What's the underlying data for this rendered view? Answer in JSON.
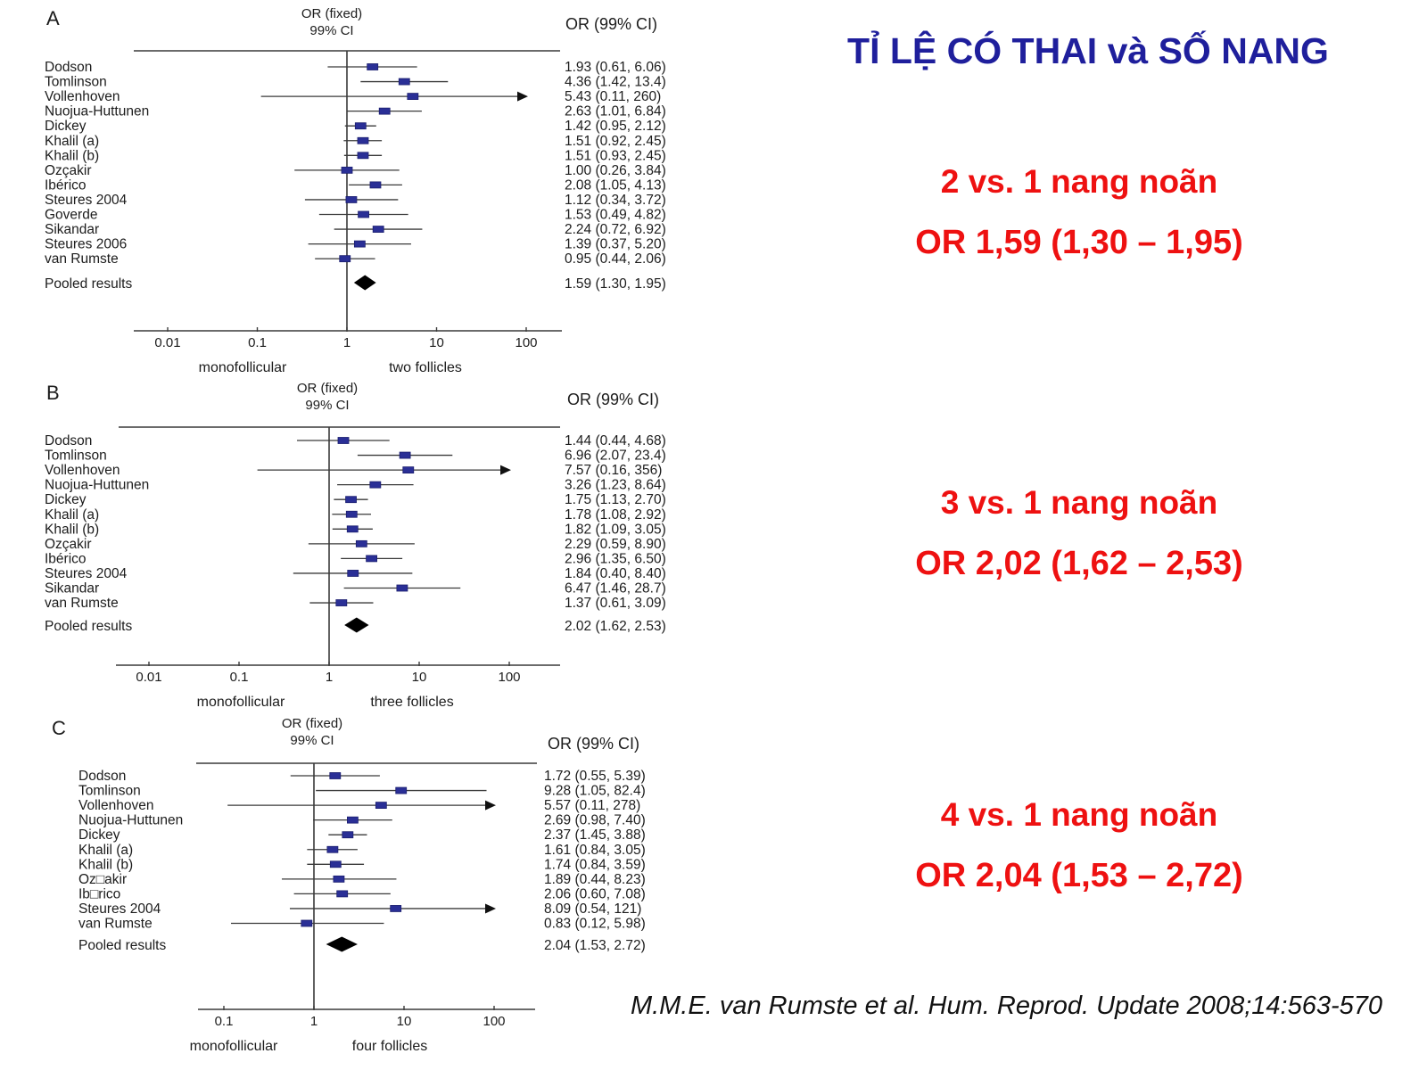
{
  "slide": {
    "title": "TỈ LỆ CÓ THAI và SỐ NANG",
    "citation": "M.M.E. van Rumste et al. Hum. Reprod. Update 2008;14:563-570",
    "colors": {
      "title_blue": "#1f1f9c",
      "accent_red": "#ee1111",
      "marker_blue": "#2a2f96",
      "line_dark": "#3a3a3a",
      "diamond_black": "#000000"
    }
  },
  "annotations": [
    {
      "compare": "2 vs. 1 nang noãn",
      "or_text": "OR 1,59 (1,30 – 1,95)"
    },
    {
      "compare": "3 vs. 1 nang noãn",
      "or_text": "OR 2,02 (1,62 – 2,53)"
    },
    {
      "compare": "4 vs. 1 nang noãn",
      "or_text": "OR 2,04 (1,53 – 2,72)"
    }
  ],
  "chart_data": [
    {
      "type": "forest",
      "panel": "A",
      "header_line1": "OR (fixed)",
      "header_line2": "99% CI",
      "value_col_header": "OR (99% CI)",
      "axis": {
        "scale": "log",
        "ticks": [
          0.01,
          0.1,
          1,
          10,
          100
        ],
        "tick_labels": [
          "0.01",
          "0.1",
          "1",
          "10",
          "100"
        ],
        "left_label": "monofollicular",
        "right_label": "two follicles",
        "xlim": [
          0.01,
          200
        ]
      },
      "studies": [
        {
          "name": "Dodson",
          "or": 1.93,
          "lo": 0.61,
          "hi": 6.06,
          "label": "1.93 (0.61, 6.06)"
        },
        {
          "name": "Tomlinson",
          "or": 4.36,
          "lo": 1.42,
          "hi": 13.4,
          "label": "4.36 (1.42, 13.4)"
        },
        {
          "name": "Vollenhoven",
          "or": 5.43,
          "lo": 0.11,
          "hi": 260,
          "label": "5.43 (0.11, 260)"
        },
        {
          "name": "Nuojua-Huttunen",
          "or": 2.63,
          "lo": 1.01,
          "hi": 6.84,
          "label": "2.63 (1.01, 6.84)"
        },
        {
          "name": "Dickey",
          "or": 1.42,
          "lo": 0.95,
          "hi": 2.12,
          "label": "1.42 (0.95, 2.12)"
        },
        {
          "name": "Khalil (a)",
          "or": 1.51,
          "lo": 0.92,
          "hi": 2.45,
          "label": "1.51 (0.92, 2.45)"
        },
        {
          "name": "Khalil (b)",
          "or": 1.51,
          "lo": 0.93,
          "hi": 2.45,
          "label": "1.51 (0.93, 2.45)"
        },
        {
          "name": "Ozçakir",
          "or": 1.0,
          "lo": 0.26,
          "hi": 3.84,
          "label": "1.00 (0.26, 3.84)"
        },
        {
          "name": "Ibérico",
          "or": 2.08,
          "lo": 1.05,
          "hi": 4.13,
          "label": "2.08 (1.05, 4.13)"
        },
        {
          "name": "Steures 2004",
          "or": 1.12,
          "lo": 0.34,
          "hi": 3.72,
          "label": "1.12 (0.34, 3.72)"
        },
        {
          "name": "Goverde",
          "or": 1.53,
          "lo": 0.49,
          "hi": 4.82,
          "label": "1.53 (0.49, 4.82)"
        },
        {
          "name": "Sikandar",
          "or": 2.24,
          "lo": 0.72,
          "hi": 6.92,
          "label": "2.24 (0.72, 6.92)"
        },
        {
          "name": "Steures 2006",
          "or": 1.39,
          "lo": 0.37,
          "hi": 5.2,
          "label": "1.39 (0.37, 5.20)"
        },
        {
          "name": "van Rumste",
          "or": 0.95,
          "lo": 0.44,
          "hi": 2.06,
          "label": "0.95 (0.44, 2.06)"
        }
      ],
      "pooled": {
        "name": "Pooled results",
        "or": 1.59,
        "lo": 1.3,
        "hi": 1.95,
        "label": "1.59 (1.30, 1.95)"
      }
    },
    {
      "type": "forest",
      "panel": "B",
      "header_line1": "OR (fixed)",
      "header_line2": "99% CI",
      "value_col_header": "OR (99% CI)",
      "axis": {
        "scale": "log",
        "ticks": [
          0.01,
          0.1,
          1,
          10,
          100
        ],
        "tick_labels": [
          "0.01",
          "0.1",
          "1",
          "10",
          "100"
        ],
        "left_label": "monofollicular",
        "right_label": "three follicles",
        "xlim": [
          0.01,
          200
        ]
      },
      "studies": [
        {
          "name": "Dodson",
          "or": 1.44,
          "lo": 0.44,
          "hi": 4.68,
          "label": "1.44 (0.44, 4.68)"
        },
        {
          "name": "Tomlinson",
          "or": 6.96,
          "lo": 2.07,
          "hi": 23.4,
          "label": "6.96 (2.07, 23.4)"
        },
        {
          "name": "Vollenhoven",
          "or": 7.57,
          "lo": 0.16,
          "hi": 356,
          "label": "7.57 (0.16, 356)"
        },
        {
          "name": "Nuojua-Huttunen",
          "or": 3.26,
          "lo": 1.23,
          "hi": 8.64,
          "label": "3.26 (1.23, 8.64)"
        },
        {
          "name": "Dickey",
          "or": 1.75,
          "lo": 1.13,
          "hi": 2.7,
          "label": "1.75 (1.13, 2.70)"
        },
        {
          "name": "Khalil (a)",
          "or": 1.78,
          "lo": 1.08,
          "hi": 2.92,
          "label": "1.78 (1.08, 2.92)"
        },
        {
          "name": "Khalil (b)",
          "or": 1.82,
          "lo": 1.09,
          "hi": 3.05,
          "label": "1.82 (1.09, 3.05)"
        },
        {
          "name": "Ozçakir",
          "or": 2.29,
          "lo": 0.59,
          "hi": 8.9,
          "label": "2.29 (0.59, 8.90)"
        },
        {
          "name": "Ibérico",
          "or": 2.96,
          "lo": 1.35,
          "hi": 6.5,
          "label": "2.96 (1.35, 6.50)"
        },
        {
          "name": "Steures 2004",
          "or": 1.84,
          "lo": 0.4,
          "hi": 8.4,
          "label": "1.84 (0.40, 8.40)"
        },
        {
          "name": "Sikandar",
          "or": 6.47,
          "lo": 1.46,
          "hi": 28.7,
          "label": "6.47 (1.46, 28.7)"
        },
        {
          "name": "van Rumste",
          "or": 1.37,
          "lo": 0.61,
          "hi": 3.09,
          "label": "1.37 (0.61, 3.09)"
        }
      ],
      "pooled": {
        "name": "Pooled results",
        "or": 2.02,
        "lo": 1.62,
        "hi": 2.53,
        "label": "2.02 (1.62, 2.53)"
      }
    },
    {
      "type": "forest",
      "panel": "C",
      "header_line1": "OR (fixed)",
      "header_line2": "99% CI",
      "value_col_header": "OR (99% CI)",
      "axis": {
        "scale": "log",
        "ticks": [
          0.1,
          1,
          10,
          100
        ],
        "tick_labels": [
          "0.1",
          "1",
          "10",
          "100"
        ],
        "left_label": "monofollicular",
        "right_label": "four follicles",
        "xlim": [
          0.1,
          200
        ]
      },
      "studies": [
        {
          "name": "Dodson",
          "or": 1.72,
          "lo": 0.55,
          "hi": 5.39,
          "label": "1.72 (0.55, 5.39)"
        },
        {
          "name": "Tomlinson",
          "or": 9.28,
          "lo": 1.05,
          "hi": 82.4,
          "label": "9.28 (1.05, 82.4)"
        },
        {
          "name": "Vollenhoven",
          "or": 5.57,
          "lo": 0.11,
          "hi": 278,
          "label": "5.57 (0.11, 278)"
        },
        {
          "name": "Nuojua-Huttunen",
          "or": 2.69,
          "lo": 0.98,
          "hi": 7.4,
          "label": "2.69 (0.98, 7.40)"
        },
        {
          "name": "Dickey",
          "or": 2.37,
          "lo": 1.45,
          "hi": 3.88,
          "label": "2.37 (1.45, 3.88)"
        },
        {
          "name": "Khalil (a)",
          "or": 1.61,
          "lo": 0.84,
          "hi": 3.05,
          "label": "1.61 (0.84, 3.05)"
        },
        {
          "name": "Khalil (b)",
          "or": 1.74,
          "lo": 0.84,
          "hi": 3.59,
          "label": "1.74 (0.84, 3.59)"
        },
        {
          "name": "Oz□akir",
          "or": 1.89,
          "lo": 0.44,
          "hi": 8.23,
          "label": "1.89 (0.44, 8.23)"
        },
        {
          "name": "Ib□rico",
          "or": 2.06,
          "lo": 0.6,
          "hi": 7.08,
          "label": "2.06 (0.60, 7.08)"
        },
        {
          "name": "Steures 2004",
          "or": 8.09,
          "lo": 0.54,
          "hi": 121,
          "label": "8.09 (0.54, 121)"
        },
        {
          "name": "van Rumste",
          "or": 0.83,
          "lo": 0.12,
          "hi": 5.98,
          "label": "0.83 (0.12, 5.98)"
        }
      ],
      "pooled": {
        "name": "Pooled results",
        "or": 2.04,
        "lo": 1.53,
        "hi": 2.72,
        "label": "2.04 (1.53, 2.72)"
      }
    }
  ]
}
